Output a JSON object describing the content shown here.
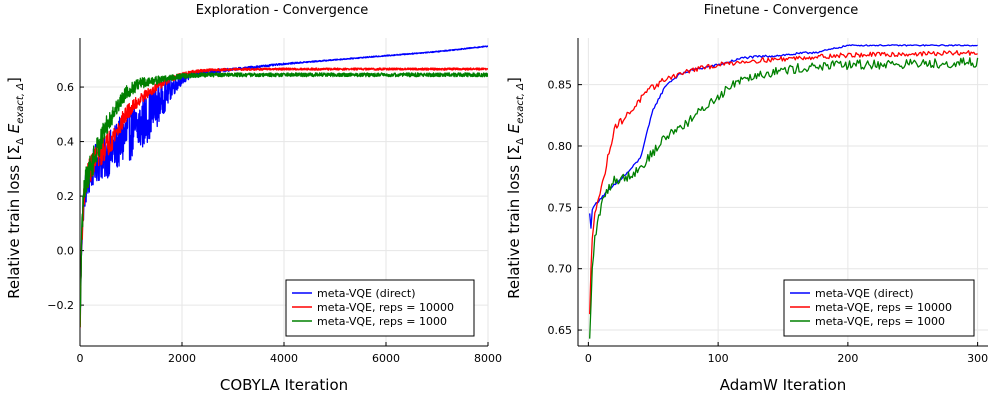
{
  "chart_data": [
    {
      "type": "line",
      "title": "Exploration - Convergence",
      "xlabel": "COBYLA Iteration",
      "ylabel_text": "Relative train loss",
      "ylabel_math": "[Σ",
      "ylabel_math_sub": "Δ",
      "ylabel_math_rest": "E",
      "ylabel_math_rest_sub": "exact, Δ",
      "ylabel_math_close": "]",
      "xlim": [
        0,
        8000
      ],
      "ylim": [
        -0.35,
        0.78
      ],
      "xticks": [
        0,
        2000,
        4000,
        6000,
        8000
      ],
      "xtick_labels": [
        "0",
        "2000",
        "4000",
        "6000",
        "8000"
      ],
      "yticks": [
        -0.2,
        0.0,
        0.2,
        0.4,
        0.6
      ],
      "ytick_labels": [
        "−0.2",
        "0.0",
        "0.2",
        "0.4",
        "0.6"
      ],
      "grid": true,
      "legend_position": "bottom-right",
      "series": [
        {
          "name": "meta-VQE (direct)",
          "color": "#0000ff",
          "x": [
            0,
            30,
            60,
            100,
            200,
            300,
            500,
            700,
            900,
            1200,
            1500,
            1800,
            2000,
            2200,
            2500,
            3000,
            3500,
            4000,
            5000,
            6000,
            7000,
            8000
          ],
          "y": [
            -0.3,
            0.02,
            0.15,
            0.22,
            0.28,
            0.32,
            0.34,
            0.38,
            0.42,
            0.46,
            0.53,
            0.6,
            0.63,
            0.645,
            0.655,
            0.665,
            0.675,
            0.685,
            0.7,
            0.715,
            0.73,
            0.75
          ],
          "noise": [
            0.04,
            0.05,
            0.06,
            0.06,
            0.07,
            0.07,
            0.08,
            0.09,
            0.1,
            0.1,
            0.08,
            0.04,
            0.02,
            0.012,
            0.008,
            0.005,
            0.004,
            0.003,
            0.002,
            0.002,
            0.002,
            0.002
          ]
        },
        {
          "name": "meta-VQE, reps = 10000",
          "color": "#ff0000",
          "x": [
            0,
            30,
            60,
            100,
            200,
            300,
            500,
            700,
            900,
            1200,
            1500,
            1800,
            2000,
            2200,
            2500,
            3000,
            4000,
            6000,
            8000
          ],
          "y": [
            -0.3,
            0.02,
            0.15,
            0.24,
            0.3,
            0.34,
            0.38,
            0.43,
            0.5,
            0.56,
            0.6,
            0.63,
            0.645,
            0.655,
            0.662,
            0.665,
            0.666,
            0.666,
            0.666
          ],
          "noise": [
            0.04,
            0.05,
            0.05,
            0.05,
            0.05,
            0.05,
            0.05,
            0.04,
            0.03,
            0.02,
            0.015,
            0.01,
            0.008,
            0.006,
            0.005,
            0.004,
            0.004,
            0.004,
            0.004
          ]
        },
        {
          "name": "meta-VQE, reps = 1000",
          "color": "#008000",
          "x": [
            0,
            30,
            60,
            100,
            200,
            300,
            500,
            700,
            900,
            1200,
            1500,
            1800,
            2000,
            2500,
            3000,
            4000,
            6000,
            8000
          ],
          "y": [
            -0.3,
            0.02,
            0.18,
            0.25,
            0.3,
            0.35,
            0.45,
            0.52,
            0.58,
            0.615,
            0.625,
            0.635,
            0.64,
            0.645,
            0.645,
            0.645,
            0.645,
            0.645
          ],
          "noise": [
            0.04,
            0.05,
            0.05,
            0.05,
            0.05,
            0.05,
            0.04,
            0.03,
            0.025,
            0.02,
            0.015,
            0.012,
            0.01,
            0.008,
            0.007,
            0.007,
            0.007,
            0.007
          ]
        }
      ]
    },
    {
      "type": "line",
      "title": "Finetune - Convergence",
      "xlabel": "AdamW Iteration",
      "ylabel_text": "Relative train loss",
      "ylabel_math": "[Σ",
      "ylabel_math_sub": "Δ",
      "ylabel_math_rest": "E",
      "ylabel_math_rest_sub": "exact, Δ",
      "ylabel_math_close": "]",
      "xlim": [
        -8,
        308
      ],
      "ylim": [
        0.637,
        0.888
      ],
      "xticks": [
        0,
        100,
        200,
        300
      ],
      "xtick_labels": [
        "0",
        "100",
        "200",
        "300"
      ],
      "yticks": [
        0.65,
        0.7,
        0.75,
        0.8,
        0.85
      ],
      "ytick_labels": [
        "0.65",
        "0.70",
        "0.75",
        "0.80",
        "0.85"
      ],
      "grid": true,
      "legend_position": "bottom-right",
      "series": [
        {
          "name": "meta-VQE (direct)",
          "color": "#0000ff",
          "x": [
            1,
            2,
            3,
            5,
            10,
            20,
            30,
            40,
            50,
            60,
            70,
            80,
            100,
            120,
            150,
            180,
            200,
            250,
            300
          ],
          "y": [
            0.745,
            0.733,
            0.748,
            0.752,
            0.758,
            0.768,
            0.778,
            0.79,
            0.83,
            0.85,
            0.858,
            0.862,
            0.866,
            0.872,
            0.874,
            0.877,
            0.882,
            0.882,
            0.882
          ],
          "noise": [
            0,
            0,
            0,
            0.001,
            0.001,
            0.001,
            0.001,
            0.001,
            0.001,
            0.001,
            0.001,
            0.001,
            0.001,
            0.001,
            0.001,
            0.001,
            0.0005,
            0.0005,
            0.0005
          ]
        },
        {
          "name": "meta-VQE, reps = 10000",
          "color": "#ff0000",
          "x": [
            1,
            2,
            3,
            5,
            10,
            15,
            20,
            30,
            40,
            50,
            60,
            80,
            100,
            120,
            150,
            180,
            200,
            250,
            300
          ],
          "y": [
            0.663,
            0.7,
            0.725,
            0.748,
            0.765,
            0.79,
            0.815,
            0.825,
            0.838,
            0.848,
            0.855,
            0.862,
            0.866,
            0.869,
            0.871,
            0.873,
            0.874,
            0.875,
            0.876
          ],
          "noise": [
            0,
            0,
            0.002,
            0.003,
            0.003,
            0.003,
            0.003,
            0.003,
            0.003,
            0.003,
            0.002,
            0.002,
            0.002,
            0.002,
            0.002,
            0.002,
            0.002,
            0.002,
            0.002
          ]
        },
        {
          "name": "meta-VQE, reps = 1000",
          "color": "#008000",
          "x": [
            1,
            2,
            3,
            5,
            10,
            15,
            20,
            30,
            40,
            50,
            60,
            70,
            80,
            90,
            100,
            110,
            120,
            140,
            160,
            180,
            200,
            250,
            300
          ],
          "y": [
            0.643,
            0.67,
            0.7,
            0.725,
            0.752,
            0.765,
            0.772,
            0.775,
            0.782,
            0.795,
            0.808,
            0.815,
            0.822,
            0.832,
            0.84,
            0.85,
            0.856,
            0.86,
            0.863,
            0.865,
            0.866,
            0.867,
            0.868
          ],
          "noise": [
            0,
            0.002,
            0.003,
            0.004,
            0.004,
            0.004,
            0.004,
            0.004,
            0.004,
            0.004,
            0.004,
            0.004,
            0.004,
            0.004,
            0.004,
            0.004,
            0.004,
            0.004,
            0.004,
            0.004,
            0.004,
            0.004,
            0.004
          ]
        }
      ]
    }
  ]
}
